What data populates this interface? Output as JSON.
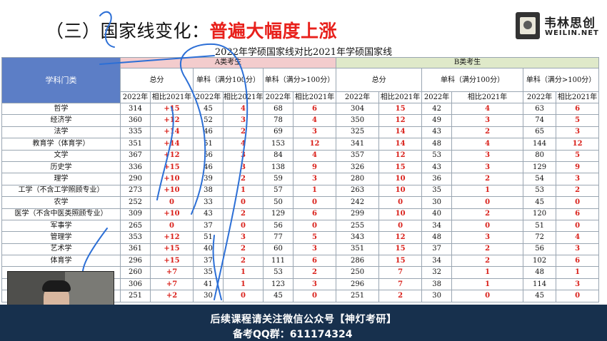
{
  "slide": {
    "title_prefix": "（三）国家线变化：",
    "title_highlight": "普遍大幅度上涨"
  },
  "brand": {
    "name": "韦林思创",
    "en": "WEILIN.NET"
  },
  "table": {
    "caption": "2022年学硕国家线对比2021年学硕国家线",
    "subject_header": "学科门类",
    "group_a": "A类考生",
    "group_b": "B类考生",
    "total": "总分",
    "single_le100": "单科（满分100分）",
    "single_gt100": "单科（满分>100分）",
    "year": "2022年",
    "compare": "相比2021年",
    "rows": [
      {
        "name": "哲学",
        "a": [
          "314",
          "+15",
          "45",
          "4",
          "68",
          "6"
        ],
        "b": [
          "304",
          "15",
          "42",
          "4",
          "63",
          "6"
        ]
      },
      {
        "name": "经济学",
        "a": [
          "360",
          "+12",
          "52",
          "3",
          "78",
          "4"
        ],
        "b": [
          "350",
          "12",
          "49",
          "3",
          "74",
          "5"
        ]
      },
      {
        "name": "法学",
        "a": [
          "335",
          "+14",
          "46",
          "2",
          "69",
          "3"
        ],
        "b": [
          "325",
          "14",
          "43",
          "2",
          "65",
          "3"
        ]
      },
      {
        "name": "教育学（体育学）",
        "a": [
          "351",
          "+14",
          "51",
          "4",
          "153",
          "12"
        ],
        "b": [
          "341",
          "14",
          "48",
          "4",
          "144",
          "12"
        ]
      },
      {
        "name": "文学",
        "a": [
          "367",
          "+12",
          "56",
          "3",
          "84",
          "4"
        ],
        "b": [
          "357",
          "12",
          "53",
          "3",
          "80",
          "5"
        ]
      },
      {
        "name": "历史学",
        "a": [
          "336",
          "+15",
          "46",
          "3",
          "138",
          "9"
        ],
        "b": [
          "326",
          "15",
          "43",
          "3",
          "129",
          "9"
        ]
      },
      {
        "name": "理学",
        "a": [
          "290",
          "+10",
          "39",
          "2",
          "59",
          "3"
        ],
        "b": [
          "280",
          "10",
          "36",
          "2",
          "54",
          "3"
        ]
      },
      {
        "name": "工学（不含工学照顾专业）",
        "a": [
          "273",
          "+10",
          "38",
          "1",
          "57",
          "1"
        ],
        "b": [
          "263",
          "10",
          "35",
          "1",
          "53",
          "2"
        ]
      },
      {
        "name": "农学",
        "a": [
          "252",
          "0",
          "33",
          "0",
          "50",
          "0"
        ],
        "b": [
          "242",
          "0",
          "30",
          "0",
          "45",
          "0"
        ]
      },
      {
        "name": "医学（不含中医类照顾专业）",
        "a": [
          "309",
          "+10",
          "43",
          "2",
          "129",
          "6"
        ],
        "b": [
          "299",
          "10",
          "40",
          "2",
          "120",
          "6"
        ]
      },
      {
        "name": "军事学",
        "a": [
          "265",
          "0",
          "37",
          "0",
          "56",
          "0"
        ],
        "b": [
          "255",
          "0",
          "34",
          "0",
          "51",
          "0"
        ]
      },
      {
        "name": "管理学",
        "a": [
          "353",
          "+12",
          "51",
          "3",
          "77",
          "5"
        ],
        "b": [
          "343",
          "12",
          "48",
          "3",
          "72",
          "4"
        ]
      },
      {
        "name": "艺术学",
        "a": [
          "361",
          "+15",
          "40",
          "2",
          "60",
          "3"
        ],
        "b": [
          "351",
          "15",
          "37",
          "2",
          "56",
          "3"
        ]
      },
      {
        "name": "体育学",
        "a": [
          "296",
          "+15",
          "37",
          "2",
          "111",
          "6"
        ],
        "b": [
          "286",
          "15",
          "34",
          "2",
          "102",
          "6"
        ]
      },
      {
        "name": "",
        "a": [
          "260",
          "+7",
          "35",
          "1",
          "53",
          "2"
        ],
        "b": [
          "250",
          "7",
          "32",
          "1",
          "48",
          "1"
        ]
      },
      {
        "name": "",
        "a": [
          "306",
          "+7",
          "41",
          "1",
          "123",
          "3"
        ],
        "b": [
          "296",
          "7",
          "38",
          "1",
          "114",
          "3"
        ]
      },
      {
        "name": "",
        "a": [
          "251",
          "+2",
          "30",
          "0",
          "45",
          "0"
        ],
        "b": [
          "251",
          "2",
          "30",
          "0",
          "45",
          "0"
        ]
      }
    ]
  },
  "banner": {
    "line1": "后续课程请关注微信公众号【神灯考研】",
    "line2": "备考QQ群：611174324"
  }
}
